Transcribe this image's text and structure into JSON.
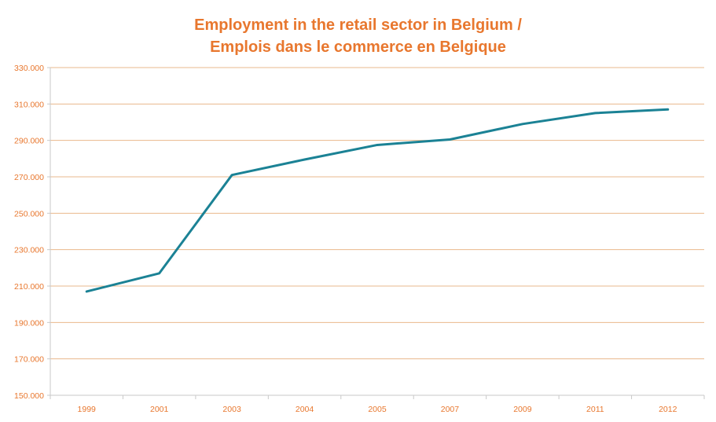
{
  "chart_data": {
    "type": "line",
    "title_line1": "Employment in the retail sector in Belgium  /",
    "title_line2": "Emplois dans le commerce en Belgique",
    "categories": [
      "1999",
      "2001",
      "2003",
      "2004",
      "2005",
      "2007",
      "2009",
      "2011",
      "2012"
    ],
    "series": [
      {
        "values": [
          207000,
          217000,
          271000,
          279500,
          287500,
          290500,
          299000,
          305000,
          307000
        ]
      }
    ],
    "yticks": [
      150000,
      170000,
      190000,
      210000,
      230000,
      250000,
      270000,
      290000,
      310000,
      330000
    ],
    "ytick_labels": [
      "150.000",
      "170.000",
      "190.000",
      "210.000",
      "230.000",
      "250.000",
      "270.000",
      "290.000",
      "310.000",
      "330.000"
    ],
    "ylim": [
      150000,
      330000
    ],
    "xlabel": "",
    "ylabel": "",
    "grid": "horizontal",
    "legend": "none",
    "colors": {
      "title": "#e8772e",
      "line": "#1b8295",
      "grid": "#e9b88c",
      "axis": "#c9c9c9",
      "ticks": "#e8772e"
    }
  }
}
